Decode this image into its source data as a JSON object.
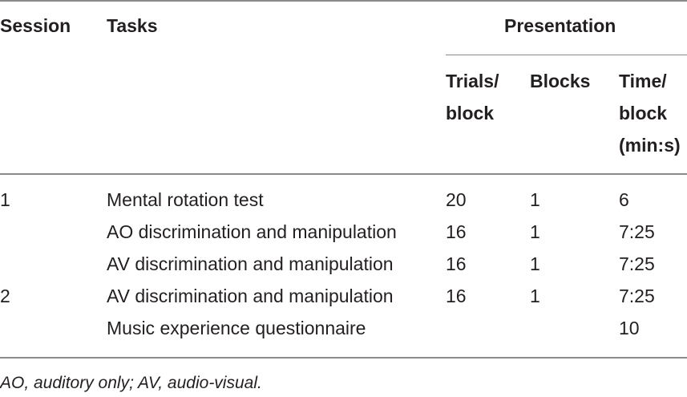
{
  "headers": {
    "session": "Session",
    "tasks": "Tasks",
    "presentation": "Presentation",
    "trials_line1": "Trials/",
    "trials_line2": "block",
    "blocks": "Blocks",
    "time_line1": "Time/",
    "time_line2": "block",
    "time_line3": "(min:s)"
  },
  "rows": [
    {
      "session": "1",
      "task": "Mental rotation test",
      "trials": "20",
      "blocks": "1",
      "time": "6"
    },
    {
      "session": "",
      "task": "AO discrimination and manipulation",
      "trials": "16",
      "blocks": "1",
      "time": "7:25"
    },
    {
      "session": "",
      "task": "AV discrimination and manipulation",
      "trials": "16",
      "blocks": "1",
      "time": "7:25"
    },
    {
      "session": "2",
      "task": "AV discrimination and manipulation",
      "trials": "16",
      "blocks": "1",
      "time": "7:25"
    },
    {
      "session": "",
      "task": "Music experience questionnaire",
      "trials": "",
      "blocks": "",
      "time": "10"
    }
  ],
  "footnote": "AO, auditory only; AV, audio-visual."
}
